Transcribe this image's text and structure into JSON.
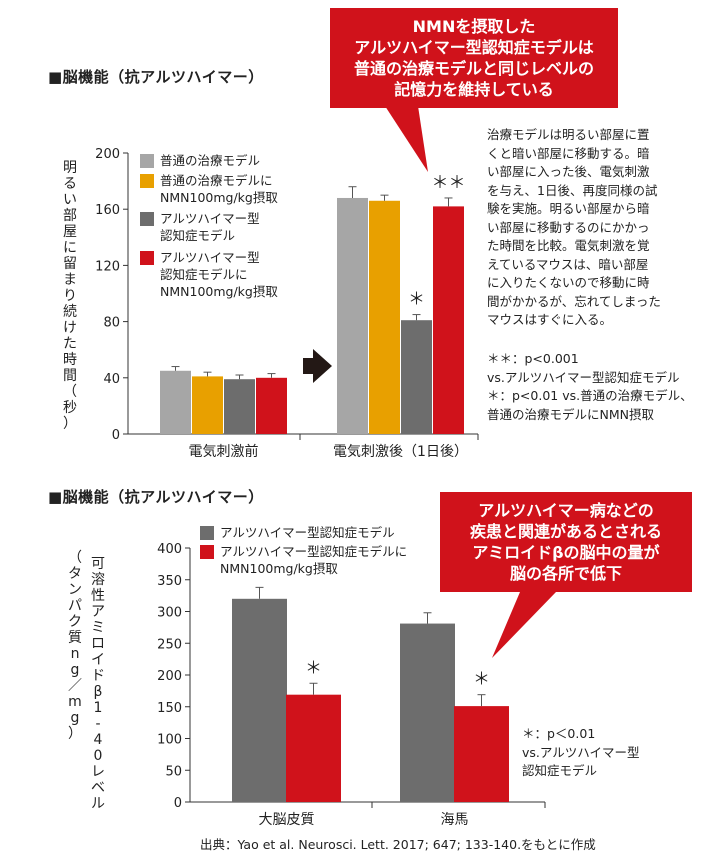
{
  "colors": {
    "gray_light": "#a6a6a6",
    "orange": "#e8a000",
    "gray_dark": "#6d6d6d",
    "red": "#d0121b",
    "callout_red": "#d0121b",
    "arrow": "#231815"
  },
  "top": {
    "section_title": "■脳機能（抗アルツハイマー）",
    "callout_lines": [
      "NMNを摂取した",
      "アルツハイマー型認知症モデルは",
      "普通の治療モデルと同じレベルの",
      "記憶力を維持している"
    ],
    "note_lines": [
      "治療モデルは明るい部屋に置",
      "くと暗い部屋に移動する。暗",
      "い部屋に入った後、電気刺激",
      "を与え、1日後、再度同様の試",
      "験を実施。明るい部屋から暗",
      "い部屋に移動するのにかかっ",
      "た時間を比較。電気刺激を覚",
      "えているマウスは、暗い部屋",
      "に入りたくないので移動に時",
      "間がかかるが、忘れてしまった",
      "マウスはすぐに入る。"
    ],
    "significance_lines": [
      "＊＊：p<0.001",
      "vs.アルツハイマー型認知症モデル",
      "＊：p<0.01 vs.普通の治療モデル、",
      "普通の治療モデルにNMN摂取"
    ],
    "legend": [
      {
        "lines": [
          "普通の治療モデル"
        ],
        "color": "#a6a6a6"
      },
      {
        "lines": [
          "普通の治療モデルに",
          "NMN100mg/kg摂取"
        ],
        "color": "#e8a000"
      },
      {
        "lines": [
          "アルツハイマー型",
          "認知症モデル"
        ],
        "color": "#6d6d6d"
      },
      {
        "lines": [
          "アルツハイマー型",
          "認知症モデルに",
          "NMN100mg/kg摂取"
        ],
        "color": "#d0121b"
      }
    ],
    "ylabel": "明るい部屋に留まり続けた時間（秒）"
  },
  "bottom": {
    "section_title": "■脳機能（抗アルツハイマー）",
    "callout_lines": [
      "アルツハイマー病などの",
      "疾患と関連があるとされる",
      "アミロイドβの脳中の量が",
      "脳の各所で低下"
    ],
    "legend": [
      {
        "lines": [
          "アルツハイマー型認知症モデル"
        ],
        "color": "#6d6d6d"
      },
      {
        "lines": [
          "アルツハイマー型認知症モデルに",
          "NMN100mg/kg摂取"
        ],
        "color": "#d0121b"
      }
    ],
    "significance_lines": [
      "＊：p＜0.01",
      "vs.アルツハイマー型",
      "認知症モデル"
    ],
    "ylabel_main": "可溶性アミロイドβ1‐40レベル",
    "ylabel_sub": "（タンパク質ng／mg）",
    "source": "出典：Yao et al. Neurosci. Lett. 2017; 647; 133-140.をもとに作成"
  },
  "chart_data": [
    {
      "type": "bar",
      "categories": [
        "電気刺激前",
        "電気刺激後（1日後）"
      ],
      "series": [
        {
          "name": "普通の治療モデル",
          "values": [
            45,
            168
          ],
          "errors": [
            3,
            8
          ],
          "color": "#a6a6a6",
          "marks": [
            "",
            ""
          ]
        },
        {
          "name": "普通の治療モデルにNMN100mg/kg摂取",
          "values": [
            41,
            166
          ],
          "errors": [
            3,
            4
          ],
          "color": "#e8a000",
          "marks": [
            "",
            ""
          ]
        },
        {
          "name": "アルツハイマー型認知症モデル",
          "values": [
            39,
            81
          ],
          "errors": [
            3,
            4
          ],
          "color": "#6d6d6d",
          "marks": [
            "",
            "＊"
          ]
        },
        {
          "name": "アルツハイマー型認知症モデルにNMN100mg/kg摂取",
          "values": [
            40,
            162
          ],
          "errors": [
            3,
            6
          ],
          "color": "#d0121b",
          "marks": [
            "",
            "＊＊"
          ]
        }
      ],
      "ylim": [
        0,
        200
      ],
      "yticks": [
        0,
        40,
        80,
        120,
        160,
        200
      ],
      "ylabel": "明るい部屋に留まり続けた時間（秒）",
      "grid": false,
      "legend_position": "top-left"
    },
    {
      "type": "bar",
      "categories": [
        "大脳皮質",
        "海馬"
      ],
      "series": [
        {
          "name": "アルツハイマー型認知症モデル",
          "values": [
            320,
            281
          ],
          "errors": [
            18,
            17
          ],
          "color": "#6d6d6d",
          "marks": [
            "",
            ""
          ]
        },
        {
          "name": "アルツハイマー型認知症モデルにNMN100mg/kg摂取",
          "values": [
            169,
            151
          ],
          "errors": [
            18,
            18
          ],
          "color": "#d0121b",
          "marks": [
            "＊",
            "＊"
          ]
        }
      ],
      "ylim": [
        0,
        400
      ],
      "yticks": [
        0,
        50,
        100,
        150,
        200,
        250,
        300,
        350,
        400
      ],
      "ylabel": "可溶性アミロイドβ1‐40レベル（タンパク質ng／mg）",
      "grid": false,
      "legend_position": "top-left"
    }
  ]
}
